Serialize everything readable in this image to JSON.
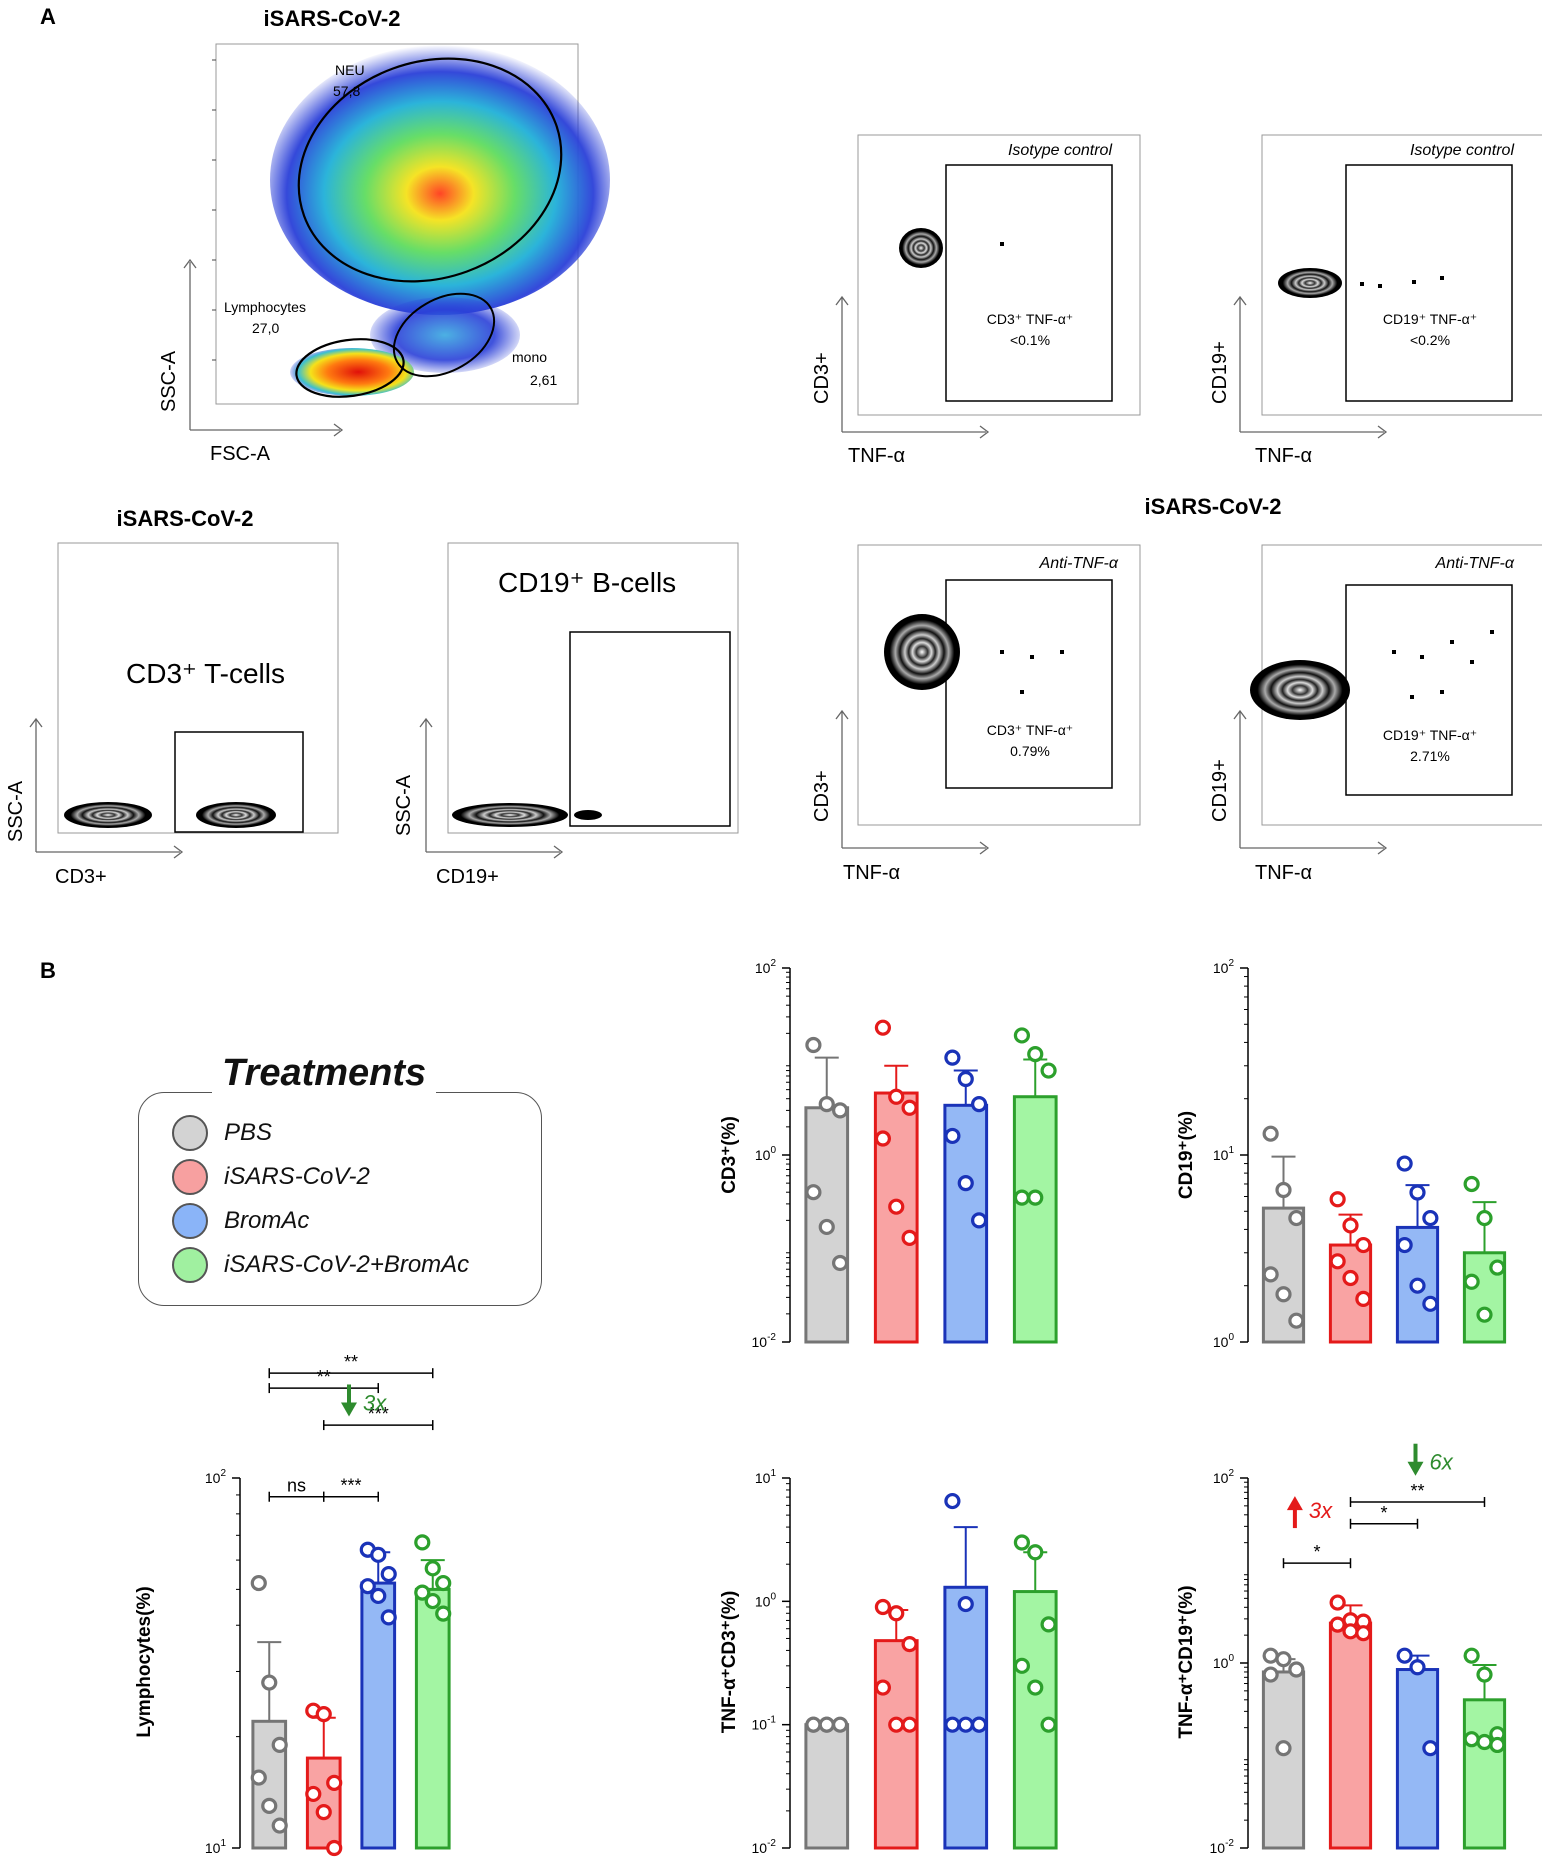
{
  "panel_a": {
    "letter": "A",
    "flow_title_top": "iSARS-CoV-2",
    "flow_title_bottom": "iSARS-CoV-2",
    "flow_title_right": "iSARS-CoV-2",
    "scatter": {
      "xlabel": "FSC-A",
      "ylabel": "SSC-A",
      "gates": {
        "neu_name": "NEU",
        "neu_value": "57,8",
        "lymph_name": "Lymphocytes",
        "lymph_value": "27,0",
        "mono_name": "mono",
        "mono_value": "2,61"
      }
    },
    "cd3_gate": {
      "label": "CD3⁺ T-cells",
      "xlabel": "CD3+",
      "ylabel": "SSC-A"
    },
    "cd19_gate": {
      "label": "CD19⁺ B-cells",
      "xlabel": "CD19+",
      "ylabel": "SSC-A"
    },
    "iso_cd3": {
      "title": "Isotype control",
      "gate_line1": "CD3⁺ TNF-α⁺",
      "gate_line2": "<0.1%",
      "xlabel": "TNF-α",
      "ylabel": "CD3+"
    },
    "iso_cd19": {
      "title": "Isotype control",
      "gate_line1": "CD19⁺ TNF-α⁺",
      "gate_line2": "<0.2%",
      "xlabel": "TNF-α",
      "ylabel": "CD19+"
    },
    "anti_cd3": {
      "title": "Anti-TNF-α",
      "gate_line1": "CD3⁺ TNF-α⁺",
      "gate_line2": "0.79%",
      "xlabel": "TNF-α",
      "ylabel": "CD3+"
    },
    "anti_cd19": {
      "title": "Anti-TNF-α",
      "gate_line1": "CD19⁺ TNF-α⁺",
      "gate_line2": "2.71%",
      "xlabel": "TNF-α",
      "ylabel": "CD19+"
    }
  },
  "panel_b": {
    "letter": "B",
    "legend": {
      "title": "Treatments",
      "items": [
        {
          "label": "PBS",
          "color": "#d3d3d3"
        },
        {
          "label": "iSARS-CoV-2",
          "color": "#f7a0a0"
        },
        {
          "label": "BromAc",
          "color": "#8ab4f8"
        },
        {
          "label": "iSARS-CoV-2+BromAc",
          "color": "#a0f0a0"
        }
      ]
    }
  },
  "colors": {
    "fills": [
      "#d3d3d3",
      "#f9a3a3",
      "#94b8f5",
      "#a3f5a3"
    ],
    "strokes": [
      "#757575",
      "#e41a1a",
      "#1a33b8",
      "#2ca02c"
    ],
    "annotation_red": "#e41a1a",
    "annotation_green": "#2e8b2e"
  },
  "chart_data": [
    {
      "id": "cd3",
      "type": "bar",
      "yscale": "log",
      "ylabel": "CD3⁺(%)",
      "ylim": [
        0.01,
        100
      ],
      "ticks": [
        {
          "v": 0.01,
          "b": "10",
          "e": "-2"
        },
        {
          "v": 1,
          "b": "10",
          "e": "0"
        },
        {
          "v": 100,
          "b": "10",
          "e": "2"
        }
      ],
      "categories": [
        "PBS",
        "iSARS-CoV-2",
        "BromAc",
        "iSARS-CoV-2+BromAc"
      ],
      "values": [
        3.2,
        4.6,
        3.4,
        4.2
      ],
      "errors": [
        11,
        9,
        8,
        10.5
      ],
      "points": [
        [
          15,
          3.5,
          3,
          0.4,
          0.17,
          0.07
        ],
        [
          23,
          4.2,
          3.2,
          1.5,
          0.28,
          0.13
        ],
        [
          11,
          6.5,
          3.5,
          1.6,
          0.5,
          0.2
        ],
        [
          19,
          12,
          8,
          0.35,
          0.35
        ]
      ],
      "significance": [],
      "annotations": []
    },
    {
      "id": "cd19",
      "type": "bar",
      "yscale": "log",
      "ylabel": "CD19⁺(%)",
      "ylim": [
        1,
        100
      ],
      "ticks": [
        {
          "v": 1,
          "b": "10",
          "e": "0"
        },
        {
          "v": 10,
          "b": "10",
          "e": "1"
        },
        {
          "v": 100,
          "b": "10",
          "e": "2"
        }
      ],
      "categories": [
        "PBS",
        "iSARS-CoV-2",
        "BromAc",
        "iSARS-CoV-2+BromAc"
      ],
      "values": [
        5.2,
        3.3,
        4.1,
        3.0
      ],
      "errors": [
        9.8,
        4.8,
        6.9,
        5.6
      ],
      "points": [
        [
          13,
          6.5,
          4.6,
          2.3,
          1.8,
          1.3
        ],
        [
          5.8,
          4.2,
          3.3,
          2.7,
          2.2,
          1.7
        ],
        [
          9,
          6.3,
          4.6,
          3.3,
          2,
          1.6
        ],
        [
          7,
          4.6,
          2.5,
          2.1,
          1.4
        ]
      ],
      "significance": [],
      "annotations": []
    },
    {
      "id": "lymph",
      "type": "bar",
      "yscale": "log",
      "ylabel": "Lymphocytes(%)",
      "ylim": [
        10,
        100
      ],
      "ticks": [
        {
          "v": 10,
          "b": "10",
          "e": "1"
        },
        {
          "v": 100,
          "b": "10",
          "e": "2"
        }
      ],
      "categories": [
        "PBS",
        "iSARS-CoV-2",
        "BromAc",
        "iSARS-CoV-2+BromAc"
      ],
      "values": [
        22,
        17.5,
        52,
        50
      ],
      "errors": [
        36,
        22.5,
        63,
        60
      ],
      "points": [
        [
          52,
          28,
          19,
          15.5,
          13,
          11.5
        ],
        [
          23.5,
          23,
          15,
          14,
          12.5,
          10
        ],
        [
          64,
          62,
          55,
          51,
          48,
          42
        ],
        [
          67,
          57,
          52,
          49,
          46.5,
          43
        ]
      ],
      "significance": [
        {
          "from": 0,
          "to": 1,
          "label": "ns",
          "y": 89
        },
        {
          "from": 1,
          "to": 2,
          "label": "***",
          "y": 89
        },
        {
          "from": 1,
          "to": 3,
          "label": "***",
          "y": 139
        },
        {
          "from": 0,
          "to": 2,
          "label": "**",
          "y": 175
        },
        {
          "from": 0,
          "to": 3,
          "label": "**",
          "y": 192
        }
      ],
      "annotations": [
        {
          "text": "3x",
          "direction": "down",
          "color": "#2e8b2e",
          "at": 1.5,
          "y": 160
        }
      ]
    },
    {
      "id": "tnf_cd3",
      "type": "bar",
      "yscale": "log",
      "ylabel": "TNF-α⁺CD3⁺(%)",
      "ylim": [
        0.01,
        10
      ],
      "ticks": [
        {
          "v": 0.01,
          "b": "10",
          "e": "-2"
        },
        {
          "v": 0.1,
          "b": "10",
          "e": "-1"
        },
        {
          "v": 1,
          "b": "10",
          "e": "0"
        },
        {
          "v": 10,
          "b": "10",
          "e": "1"
        }
      ],
      "categories": [
        "PBS",
        "iSARS-CoV-2",
        "BromAc",
        "iSARS-CoV-2+BromAc"
      ],
      "values": [
        0.1,
        0.48,
        1.3,
        1.2
      ],
      "errors": [
        0.1,
        0.85,
        4.0,
        2.5
      ],
      "points": [
        [
          0.1,
          0.1,
          0.1,
          0.1,
          0.1
        ],
        [
          0.9,
          0.8,
          0.45,
          0.2,
          0.1,
          0.1
        ],
        [
          6.5,
          0.95,
          0.1,
          0.1,
          0.1,
          0.1
        ],
        [
          3,
          2.5,
          0.65,
          0.3,
          0.2,
          0.1
        ]
      ],
      "significance": [],
      "annotations": []
    },
    {
      "id": "tnf_cd19",
      "type": "bar",
      "yscale": "log",
      "ylabel": "TNF-α⁺CD19⁺(%)",
      "ylim": [
        0.01,
        100
      ],
      "ticks": [
        {
          "v": 0.01,
          "b": "10",
          "e": "-2"
        },
        {
          "v": 1,
          "b": "10",
          "e": "0"
        },
        {
          "v": 100,
          "b": "10",
          "e": "2"
        }
      ],
      "categories": [
        "PBS",
        "iSARS-CoV-2",
        "BromAc",
        "iSARS-CoV-2+BromAc"
      ],
      "values": [
        0.8,
        2.7,
        0.85,
        0.4
      ],
      "errors": [
        1.1,
        4.2,
        1.2,
        0.95
      ],
      "points": [
        [
          1.2,
          1.1,
          0.85,
          0.75,
          0.12
        ],
        [
          4.5,
          2.9,
          2.8,
          2.6,
          2.2,
          2.1
        ],
        [
          1.2,
          0.9,
          0.12
        ],
        [
          1.2,
          0.75,
          0.17,
          0.15,
          0.14,
          0.13
        ]
      ],
      "significance": [
        {
          "from": 0,
          "to": 1,
          "label": "*",
          "y": 12
        },
        {
          "from": 1,
          "to": 2,
          "label": "*",
          "y": 32
        },
        {
          "from": 1,
          "to": 3,
          "label": "**",
          "y": 55
        }
      ],
      "annotations": [
        {
          "text": "3x",
          "direction": "up",
          "color": "#e41a1a",
          "at": 0.2,
          "y": 45
        },
        {
          "text": "6x",
          "direction": "down",
          "color": "#2e8b2e",
          "at": 2.0,
          "y": 150
        }
      ]
    }
  ]
}
